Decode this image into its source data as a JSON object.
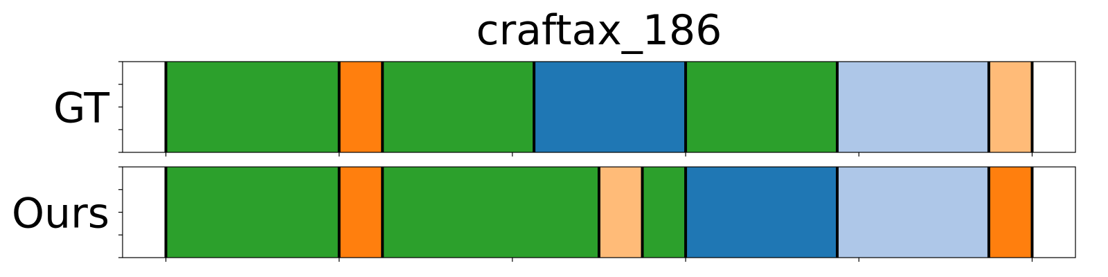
{
  "chart_data": {
    "type": "segmented-bar",
    "title": "craftax_186",
    "xlim": [
      0,
      22
    ],
    "rows": [
      {
        "label": "GT",
        "segments": [
          {
            "start": 1.0,
            "end": 5.0,
            "color": "#2ca02c"
          },
          {
            "start": 5.0,
            "end": 6.0,
            "color": "#ff7f0e"
          },
          {
            "start": 6.0,
            "end": 9.5,
            "color": "#2ca02c"
          },
          {
            "start": 9.5,
            "end": 13.0,
            "color": "#1f77b4"
          },
          {
            "start": 13.0,
            "end": 16.5,
            "color": "#2ca02c"
          },
          {
            "start": 16.5,
            "end": 20.0,
            "color": "#aec7e8"
          },
          {
            "start": 20.0,
            "end": 21.0,
            "color": "#ffbb78"
          }
        ],
        "boundaries": [
          1.0,
          5.0,
          6.0,
          9.5,
          13.0,
          16.5,
          20.0,
          21.0
        ]
      },
      {
        "label": "Ours",
        "segments": [
          {
            "start": 1.0,
            "end": 5.0,
            "color": "#2ca02c"
          },
          {
            "start": 5.0,
            "end": 6.0,
            "color": "#ff7f0e"
          },
          {
            "start": 6.0,
            "end": 11.0,
            "color": "#2ca02c"
          },
          {
            "start": 11.0,
            "end": 12.0,
            "color": "#ffbb78"
          },
          {
            "start": 12.0,
            "end": 13.0,
            "color": "#2ca02c"
          },
          {
            "start": 13.0,
            "end": 16.5,
            "color": "#1f77b4"
          },
          {
            "start": 16.5,
            "end": 20.0,
            "color": "#aec7e8"
          },
          {
            "start": 20.0,
            "end": 21.0,
            "color": "#ff7f0e"
          }
        ],
        "boundaries": [
          1.0,
          5.0,
          6.0,
          11.0,
          12.0,
          13.0,
          16.5,
          20.0,
          21.0
        ]
      }
    ],
    "x_ticks": [
      1,
      5,
      9,
      13,
      17,
      21
    ],
    "y_ticks_per_row": 5,
    "grid": false,
    "legend": "none"
  }
}
